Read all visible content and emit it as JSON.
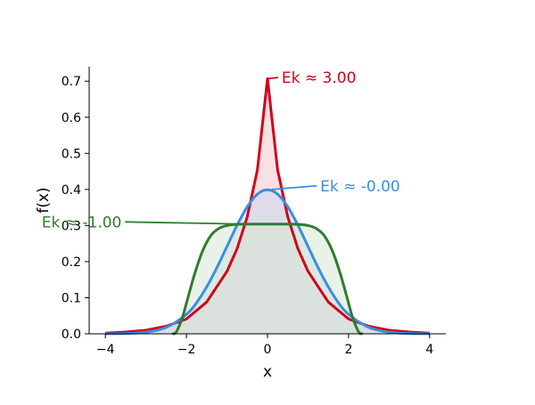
{
  "chart_data": {
    "type": "line",
    "title": "",
    "xlabel": "x",
    "ylabel": "f(x)",
    "xlim": [
      -4.4,
      4.4
    ],
    "ylim": [
      0,
      0.74
    ],
    "x_ticks": [
      -4,
      -2,
      0,
      2,
      4
    ],
    "x_tick_labels": [
      "−4",
      "−2",
      "0",
      "2",
      "4"
    ],
    "y_ticks": [
      0.0,
      0.1,
      0.2,
      0.3,
      0.4,
      0.5,
      0.6,
      0.7
    ],
    "y_tick_labels": [
      "0.0",
      "0.1",
      "0.2",
      "0.3",
      "0.4",
      "0.5",
      "0.6",
      "0.7"
    ],
    "grid": false,
    "spines": "left-bottom",
    "series": [
      {
        "color": "#d0021b",
        "fill": "#f5c6cc",
        "x": [
          -4,
          -3.5,
          -3,
          -2.5,
          -2,
          -1.5,
          -1,
          -0.75,
          -0.5,
          -0.25,
          0,
          0.25,
          0.5,
          0.75,
          1,
          1.5,
          2,
          2.5,
          3,
          3.5,
          4
        ],
        "y": [
          0.002,
          0.005,
          0.01,
          0.021,
          0.041,
          0.088,
          0.173,
          0.236,
          0.324,
          0.454,
          0.707,
          0.454,
          0.324,
          0.236,
          0.173,
          0.088,
          0.041,
          0.021,
          0.01,
          0.005,
          0.002
        ],
        "annotation": {
          "text": "Ek ≈ 3.00",
          "x": 0,
          "y": 0.707,
          "text_x": 0.35,
          "text_y": 0.71
        }
      },
      {
        "color": "#3a8ee0",
        "fill": "#c9d8ef",
        "x": [
          -4,
          -3.5,
          -3,
          -2.5,
          -2,
          -1.75,
          -1.5,
          -1.25,
          -1,
          -0.75,
          -0.5,
          -0.25,
          0,
          0.25,
          0.5,
          0.75,
          1,
          1.25,
          1.5,
          1.75,
          2,
          2.5,
          3,
          3.5,
          4
        ],
        "y": [
          0.0001,
          0.0009,
          0.0044,
          0.0175,
          0.054,
          0.086,
          0.13,
          0.183,
          0.242,
          0.301,
          0.352,
          0.387,
          0.399,
          0.387,
          0.352,
          0.301,
          0.242,
          0.183,
          0.13,
          0.086,
          0.054,
          0.0175,
          0.0044,
          0.0009,
          0.0001
        ],
        "annotation": {
          "text": "Ek ≈ -0.00",
          "x": 0.1,
          "y": 0.4,
          "text_x": 1.3,
          "text_y": 0.41
        }
      },
      {
        "color": "#2e7d32",
        "fill": "#d7e7d3",
        "x": [
          -2.35,
          -2.25,
          -2.1,
          -2,
          -1.8,
          -1.6,
          -1.4,
          -1.2,
          -1,
          -0.8,
          -0.5,
          0,
          0.5,
          0.8,
          1,
          1.2,
          1.4,
          1.6,
          1.8,
          2,
          2.1,
          2.25,
          2.35
        ],
        "y": [
          0.0,
          0.005,
          0.045,
          0.085,
          0.165,
          0.23,
          0.272,
          0.292,
          0.3,
          0.303,
          0.304,
          0.304,
          0.304,
          0.303,
          0.3,
          0.292,
          0.272,
          0.23,
          0.165,
          0.085,
          0.045,
          0.005,
          0.0
        ],
        "annotation": {
          "text": "Ek ≈ -1.00",
          "x": -0.5,
          "y": 0.304,
          "text_x": -3.6,
          "text_y": 0.31
        }
      }
    ]
  }
}
